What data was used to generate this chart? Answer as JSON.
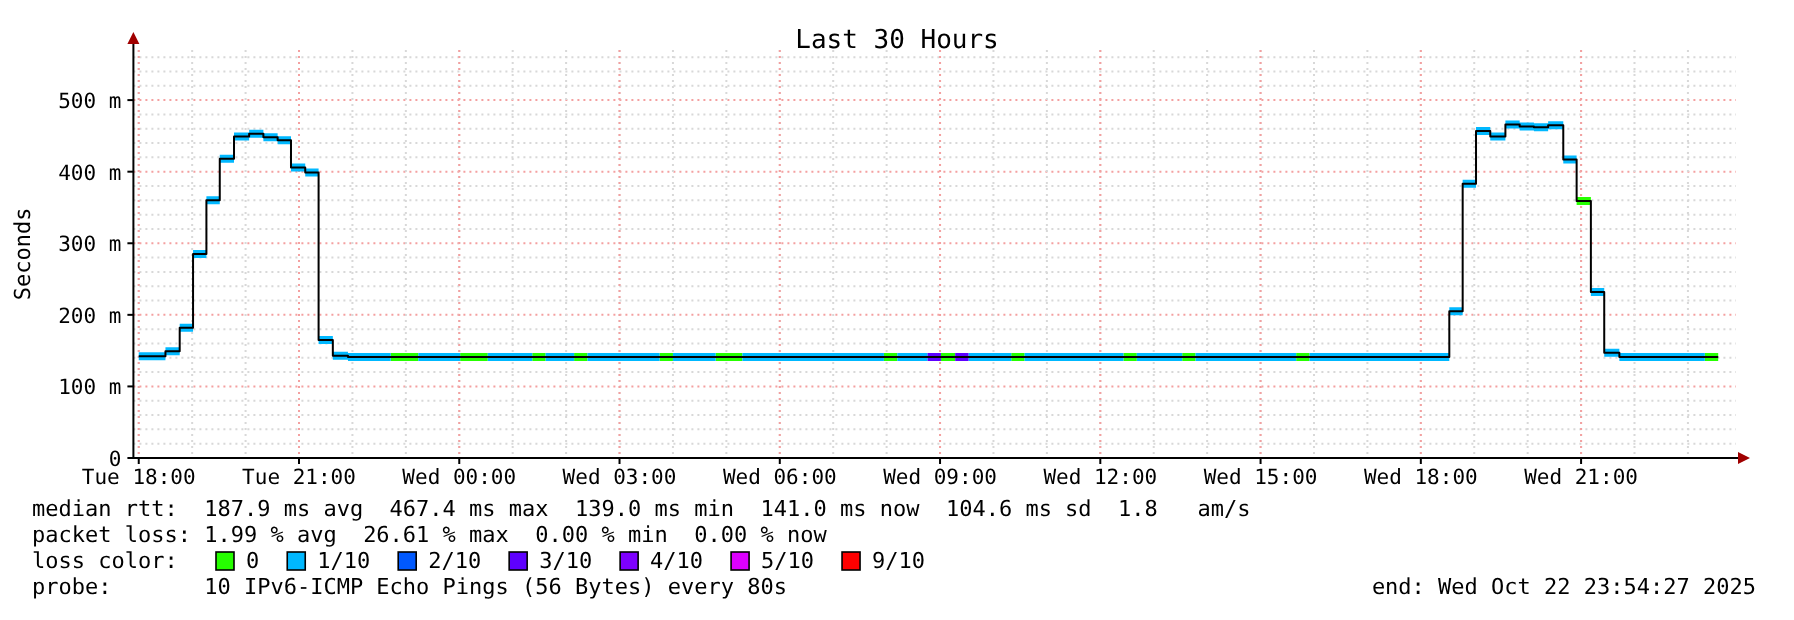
{
  "chart_data": {
    "type": "step",
    "title": "Last 30 Hours",
    "ylabel": "Seconds",
    "x": [
      "2025-10-21T18:00",
      "2025-10-21T18:30",
      "2025-10-21T18:46",
      "2025-10-21T19:01",
      "2025-10-21T19:16",
      "2025-10-21T19:31",
      "2025-10-21T19:47",
      "2025-10-21T20:04",
      "2025-10-21T20:20",
      "2025-10-21T20:36",
      "2025-10-21T20:51",
      "2025-10-21T21:07",
      "2025-10-21T21:22",
      "2025-10-21T21:38",
      "2025-10-21T21:55",
      "2025-10-21T22:43",
      "2025-10-21T23:14",
      "2025-10-22T00:01",
      "2025-10-22T00:32",
      "2025-10-22T01:22",
      "2025-10-22T01:37",
      "2025-10-22T02:09",
      "2025-10-22T02:24",
      "2025-10-22T03:45",
      "2025-10-22T04:00",
      "2025-10-22T04:48",
      "2025-10-22T05:18",
      "2025-10-22T07:57",
      "2025-10-22T08:12",
      "2025-10-22T08:46",
      "2025-10-22T09:01",
      "2025-10-22T09:17",
      "2025-10-22T09:32",
      "2025-10-22T10:20",
      "2025-10-22T10:35",
      "2025-10-22T12:26",
      "2025-10-22T12:41",
      "2025-10-22T13:32",
      "2025-10-22T13:47",
      "2025-10-22T15:40",
      "2025-10-22T15:55",
      "2025-10-22T18:32",
      "2025-10-22T18:47",
      "2025-10-22T19:02",
      "2025-10-22T19:18",
      "2025-10-22T19:35",
      "2025-10-22T19:51",
      "2025-10-22T20:07",
      "2025-10-22T20:23",
      "2025-10-22T20:40",
      "2025-10-22T20:55",
      "2025-10-22T21:11",
      "2025-10-22T21:26",
      "2025-10-22T21:43",
      "2025-10-22T23:19",
      "2025-10-22T23:34"
    ],
    "series": [
      {
        "color": "#000000",
        "values": [
          142,
          149,
          182,
          285,
          360,
          418,
          449,
          453,
          448,
          444,
          406,
          399,
          165,
          143,
          141,
          141,
          141,
          141,
          141,
          141,
          141,
          141,
          141,
          141,
          141,
          141,
          141,
          141,
          141,
          141,
          141,
          141,
          141,
          141,
          141,
          141,
          141,
          141,
          141,
          141,
          141,
          205,
          383,
          457,
          449,
          466,
          463,
          462,
          465,
          417,
          359,
          232,
          147,
          141,
          141,
          141
        ]
      },
      {
        "name": "0",
        "color": "#26ff00",
        "x": [
          "2025-10-21T22:43",
          "2025-10-21T23:14",
          "2025-10-21T23:40",
          "2025-10-22T00:01",
          "2025-10-22T00:32",
          "2025-10-22T01:00",
          "2025-10-22T01:22",
          "2025-10-22T01:37",
          "2025-10-22T01:50",
          "2025-10-22T02:09",
          "2025-10-22T02:24",
          "2025-10-22T03:00",
          "2025-10-22T03:45",
          "2025-10-22T04:00",
          "2025-10-22T04:20",
          "2025-10-22T04:48",
          "2025-10-22T05:18",
          "2025-10-22T06:30",
          "2025-10-22T07:57",
          "2025-10-22T08:12",
          "2025-10-22T08:30",
          "2025-10-22T09:01",
          "2025-10-22T09:17",
          "2025-10-22T09:50",
          "2025-10-22T10:20",
          "2025-10-22T10:35",
          "2025-10-22T11:30",
          "2025-10-22T12:26",
          "2025-10-22T12:41",
          "2025-10-22T13:00",
          "2025-10-22T13:32",
          "2025-10-22T13:47",
          "2025-10-22T14:40",
          "2025-10-22T15:40",
          "2025-10-22T15:55",
          "2025-10-22T18:00",
          "2025-10-22T20:55",
          "2025-10-22T21:11",
          "2025-10-22T22:00",
          "2025-10-22T23:19",
          "2025-10-22T23:34"
        ],
        "values": [
          141,
          141,
          null,
          141,
          141,
          null,
          141,
          141,
          null,
          141,
          141,
          null,
          141,
          141,
          null,
          141,
          141,
          null,
          141,
          141,
          null,
          141,
          141,
          null,
          141,
          141,
          null,
          141,
          141,
          null,
          141,
          141,
          null,
          141,
          141,
          null,
          359,
          359,
          null,
          141,
          141
        ]
      },
      {
        "name": "1/10",
        "color": "#00b8ff",
        "x": [
          "2025-10-21T18:00",
          "2025-10-21T18:30",
          "2025-10-21T18:46",
          "2025-10-21T19:01",
          "2025-10-21T19:16",
          "2025-10-21T19:31",
          "2025-10-21T19:47",
          "2025-10-21T20:04",
          "2025-10-21T20:20",
          "2025-10-21T20:36",
          "2025-10-21T20:51",
          "2025-10-21T21:07",
          "2025-10-21T21:22",
          "2025-10-21T21:38",
          "2025-10-21T21:55",
          "2025-10-21T22:43",
          "2025-10-21T22:58",
          "2025-10-21T23:14",
          "2025-10-22T00:01",
          "2025-10-22T00:16",
          "2025-10-22T00:32",
          "2025-10-22T01:22",
          "2025-10-22T01:30",
          "2025-10-22T01:37",
          "2025-10-22T02:09",
          "2025-10-22T02:16",
          "2025-10-22T02:24",
          "2025-10-22T03:45",
          "2025-10-22T03:52",
          "2025-10-22T04:00",
          "2025-10-22T04:48",
          "2025-10-22T05:03",
          "2025-10-22T05:18",
          "2025-10-22T07:57",
          "2025-10-22T08:04",
          "2025-10-22T08:12",
          "2025-10-22T08:46",
          "2025-10-22T09:10",
          "2025-10-22T09:32",
          "2025-10-22T10:20",
          "2025-10-22T10:27",
          "2025-10-22T10:35",
          "2025-10-22T12:26",
          "2025-10-22T12:33",
          "2025-10-22T12:41",
          "2025-10-22T13:32",
          "2025-10-22T13:40",
          "2025-10-22T13:47",
          "2025-10-22T15:40",
          "2025-10-22T15:47",
          "2025-10-22T15:55",
          "2025-10-22T18:32",
          "2025-10-22T18:47",
          "2025-10-22T19:02",
          "2025-10-22T19:18",
          "2025-10-22T19:35",
          "2025-10-22T19:51",
          "2025-10-22T20:07",
          "2025-10-22T20:23",
          "2025-10-22T20:40",
          "2025-10-22T20:55",
          "2025-10-22T21:03",
          "2025-10-22T21:11",
          "2025-10-22T21:26",
          "2025-10-22T21:43",
          "2025-10-22T23:19"
        ],
        "values": [
          142,
          149,
          182,
          285,
          360,
          418,
          449,
          453,
          448,
          444,
          406,
          399,
          165,
          143,
          141,
          141,
          null,
          141,
          141,
          null,
          141,
          141,
          null,
          141,
          141,
          null,
          141,
          141,
          null,
          141,
          141,
          null,
          141,
          141,
          null,
          141,
          141,
          null,
          141,
          141,
          null,
          141,
          141,
          null,
          141,
          141,
          null,
          141,
          141,
          null,
          141,
          205,
          383,
          457,
          449,
          466,
          463,
          462,
          465,
          417,
          417,
          null,
          232,
          147,
          141,
          141
        ]
      },
      {
        "name": "2/10",
        "color": "#0059ff",
        "values": [
          null,
          null,
          null,
          null,
          null,
          null,
          null,
          null,
          null,
          null,
          null,
          null,
          null,
          null,
          null,
          null,
          null,
          null,
          null,
          null,
          null,
          null,
          null,
          null,
          null,
          null,
          null,
          null,
          null,
          null,
          null,
          null,
          null,
          null,
          null,
          null,
          null,
          null,
          null,
          null,
          null,
          null,
          null,
          null,
          null,
          null,
          null,
          null,
          null,
          null,
          null,
          null,
          null,
          null,
          null,
          null
        ]
      },
      {
        "name": "3/10",
        "color": "#5e00ff",
        "x": [
          "2025-10-22T08:46",
          "2025-10-22T09:01",
          "2025-10-22T09:09",
          "2025-10-22T09:17",
          "2025-10-22T09:32"
        ],
        "values": [
          141,
          141,
          null,
          141,
          141
        ]
      },
      {
        "name": "4/10",
        "color": "#7e00ff",
        "values": [
          null,
          null,
          null,
          null,
          null,
          null,
          null,
          null,
          null,
          null,
          null,
          null,
          null,
          null,
          null,
          null,
          null,
          null,
          null,
          null,
          null,
          null,
          null,
          null,
          null,
          null,
          null,
          null,
          null,
          null,
          null,
          null,
          null,
          null,
          null,
          null,
          null,
          null,
          null,
          null,
          null,
          null,
          null,
          null,
          null,
          null,
          null,
          null,
          null,
          null,
          null,
          null,
          null,
          null,
          null,
          null
        ]
      },
      {
        "name": "5/10",
        "color": "#dd00ff",
        "values": [
          null,
          null,
          null,
          null,
          null,
          null,
          null,
          null,
          null,
          null,
          null,
          null,
          null,
          null,
          null,
          null,
          null,
          null,
          null,
          null,
          null,
          null,
          null,
          null,
          null,
          null,
          null,
          null,
          null,
          null,
          null,
          null,
          null,
          null,
          null,
          null,
          null,
          null,
          null,
          null,
          null,
          null,
          null,
          null,
          null,
          null,
          null,
          null,
          null,
          null,
          null,
          null,
          null,
          null,
          null,
          null
        ]
      },
      {
        "name": "9/10",
        "color": "#ff0000",
        "values": [
          null,
          null,
          null,
          null,
          null,
          null,
          null,
          null,
          null,
          null,
          null,
          null,
          null,
          null,
          null,
          null,
          null,
          null,
          null,
          null,
          null,
          null,
          null,
          null,
          null,
          null,
          null,
          null,
          null,
          null,
          null,
          null,
          null,
          null,
          null,
          null,
          null,
          null,
          null,
          null,
          null,
          null,
          null,
          null,
          null,
          null,
          null,
          null,
          null,
          null,
          null,
          null,
          null,
          null,
          null,
          null
        ]
      }
    ],
    "xlim": [
      "2025-10-21T17:54",
      "2025-10-22T23:54"
    ],
    "xticks": [
      {
        "value": "2025-10-21T18:00",
        "label": "Tue 18:00"
      },
      {
        "value": "2025-10-21T21:00",
        "label": "Tue 21:00"
      },
      {
        "value": "2025-10-22T00:00",
        "label": "Wed 00:00"
      },
      {
        "value": "2025-10-22T03:00",
        "label": "Wed 03:00"
      },
      {
        "value": "2025-10-22T06:00",
        "label": "Wed 06:00"
      },
      {
        "value": "2025-10-22T09:00",
        "label": "Wed 09:00"
      },
      {
        "value": "2025-10-22T12:00",
        "label": "Wed 12:00"
      },
      {
        "value": "2025-10-22T15:00",
        "label": "Wed 15:00"
      },
      {
        "value": "2025-10-22T18:00",
        "label": "Wed 18:00"
      },
      {
        "value": "2025-10-22T21:00",
        "label": "Wed 21:00"
      }
    ],
    "ylim": [
      0,
      570
    ],
    "yticks": [
      0,
      {
        "value": 100,
        "label": "100 m"
      },
      {
        "value": 200,
        "label": "200 m"
      },
      {
        "value": 300,
        "label": "300 m"
      },
      {
        "value": 400,
        "label": "400 m"
      },
      {
        "value": 500,
        "label": "500 m"
      }
    ],
    "grid": true,
    "legend": "bottom",
    "legend_title": "loss color:",
    "annotations": [
      "median rtt:  187.9 ms avg  467.4 ms max  139.0 ms min  141.0 ms now  104.6 ms sd  1.8   am/s",
      "packet loss: 1.99 % avg  26.61 % max  0.00 % min  0.00 % now",
      "probe:       10 IPv6-ICMP Echo Pings (56 Bytes) every 80s",
      "end: Wed Oct 22 23:54:27 2025"
    ]
  }
}
